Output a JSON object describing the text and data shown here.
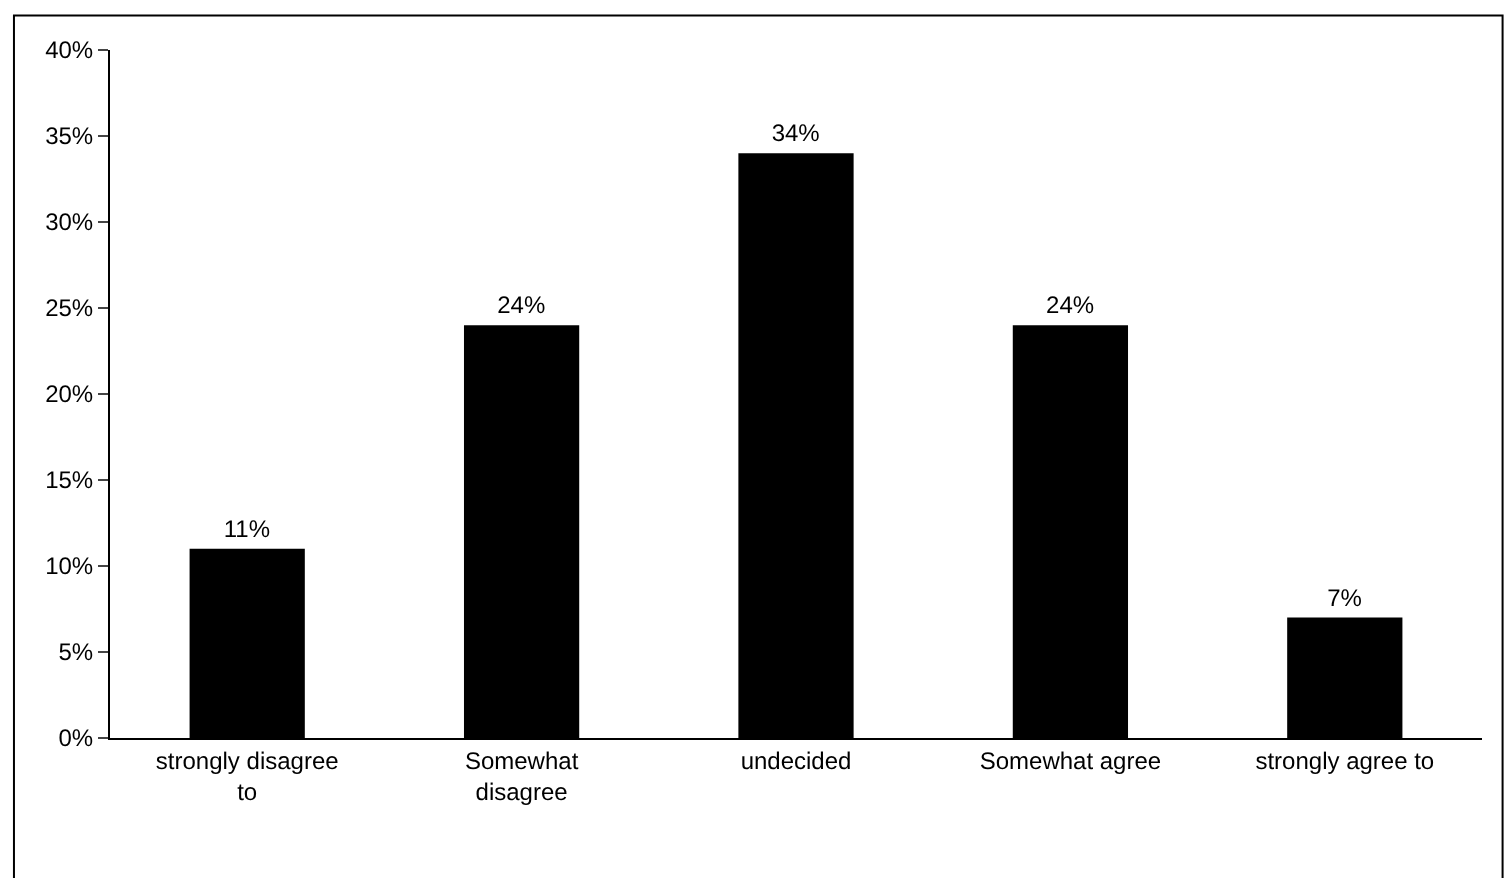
{
  "chart_data": {
    "type": "bar",
    "categories": [
      "strongly disagree\nto",
      "Somewhat\ndisagree",
      "undecided",
      "Somewhat agree",
      "strongly agree to"
    ],
    "values": [
      11,
      24,
      34,
      24,
      7
    ],
    "value_labels": [
      "11%",
      "24%",
      "34%",
      "24%",
      "7%"
    ],
    "color": "#000000",
    "ylim": [
      0,
      40
    ],
    "yticks": [
      {
        "value": 0,
        "label": "0%"
      },
      {
        "value": 5,
        "label": "5%"
      },
      {
        "value": 10,
        "label": "10%"
      },
      {
        "value": 15,
        "label": "15%"
      },
      {
        "value": 20,
        "label": "20%"
      },
      {
        "value": 25,
        "label": "25%"
      },
      {
        "value": 30,
        "label": "30%"
      },
      {
        "value": 35,
        "label": "35%"
      },
      {
        "value": 40,
        "label": "40%"
      }
    ],
    "grid": false,
    "legend": false
  }
}
